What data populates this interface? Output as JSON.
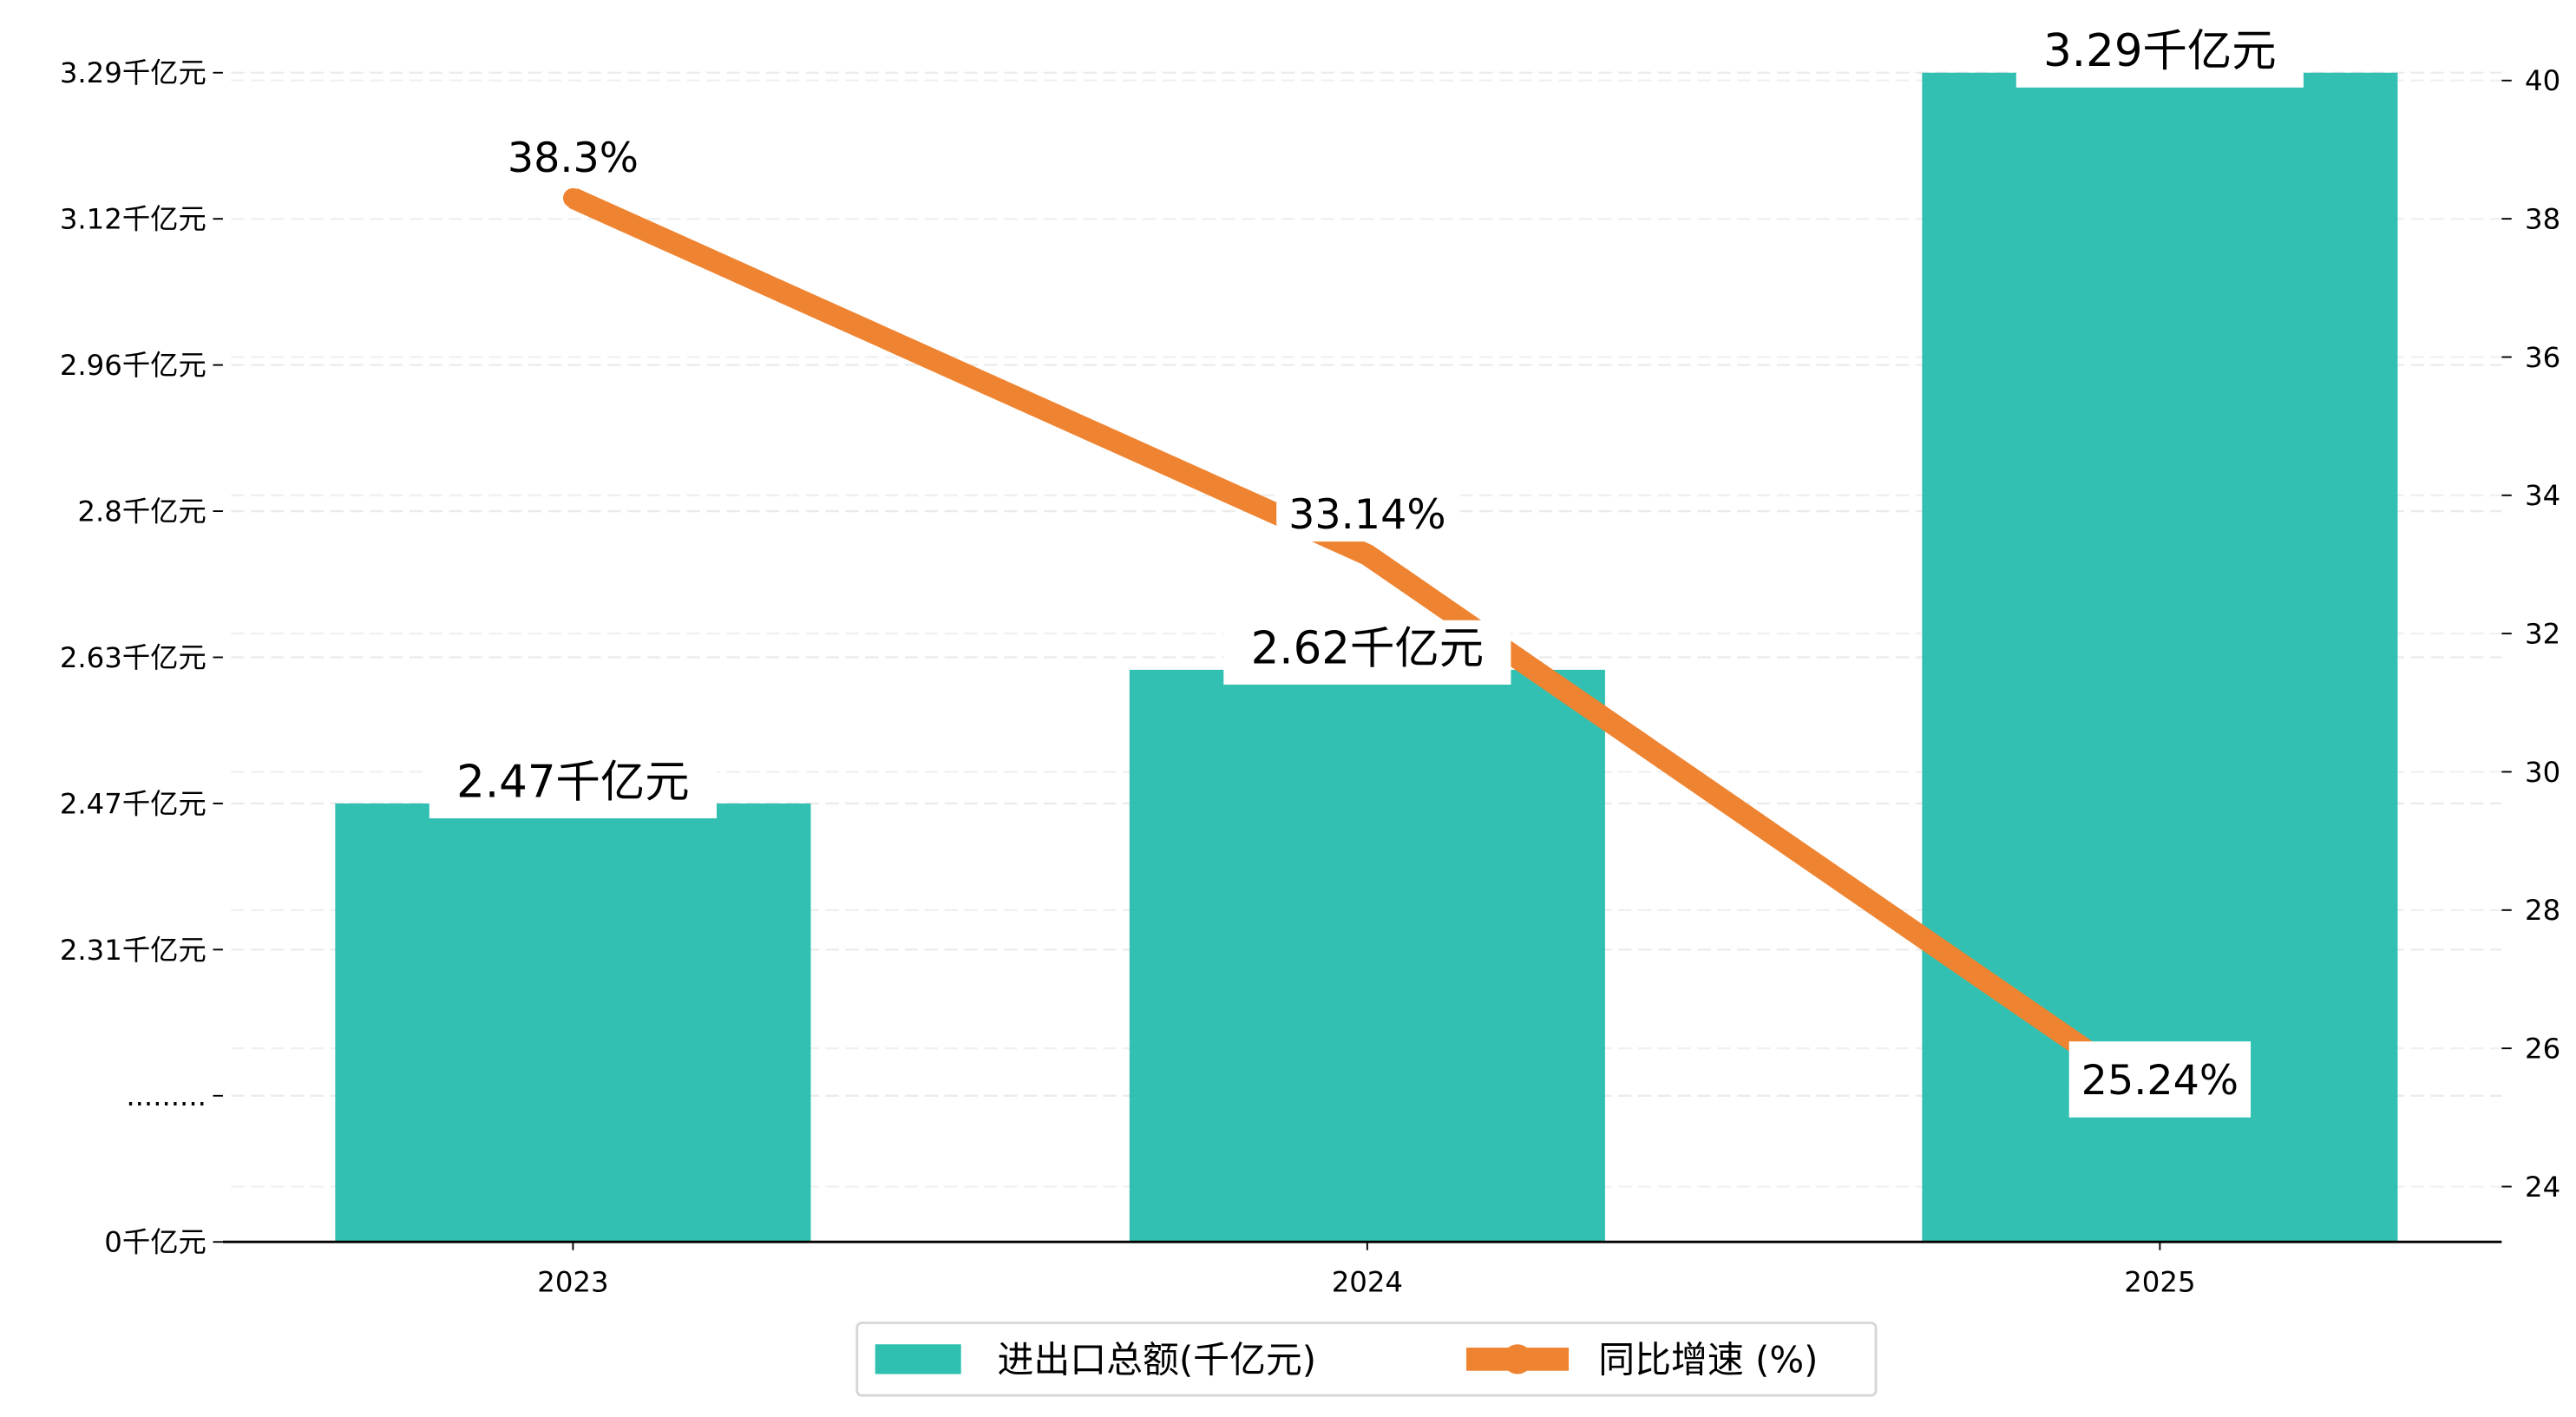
{
  "chart_data": {
    "type": "bar+line",
    "categories": [
      "2023",
      "2024",
      "2025"
    ],
    "series": [
      {
        "name": "进出口总额(千亿元)",
        "type": "bar",
        "axis": "left",
        "values": [
          2.47,
          2.62,
          3.29
        ],
        "labels": [
          "2.47千亿元",
          "2.62千亿元",
          "3.29千亿元"
        ],
        "color": "#20bbaa"
      },
      {
        "name": "同比增速 (%)",
        "type": "line",
        "axis": "right",
        "values": [
          38.3,
          33.14,
          25.24
        ],
        "labels": [
          "38.3%",
          "33.14%",
          "25.24%"
        ],
        "color": "#ee8431"
      }
    ],
    "left_axis": {
      "tick_labels": [
        "0千亿元",
        ".........",
        "2.31千亿元",
        "2.47千亿元",
        "2.63千亿元",
        "2.8千亿元",
        "2.96千亿元",
        "3.12千亿元",
        "3.29千亿元"
      ],
      "tick_values": [
        0,
        null,
        2.31,
        2.47,
        2.63,
        2.8,
        2.96,
        3.12,
        3.29
      ],
      "broken": true
    },
    "right_axis": {
      "ticks": [
        24,
        26,
        28,
        30,
        32,
        34,
        36,
        38,
        40
      ],
      "ylim": [
        23.2,
        40.4
      ]
    },
    "grid": true,
    "legend_placement": "bottom-center",
    "legend": [
      "进出口总额(千亿元)",
      "同比增速 (%)"
    ]
  }
}
